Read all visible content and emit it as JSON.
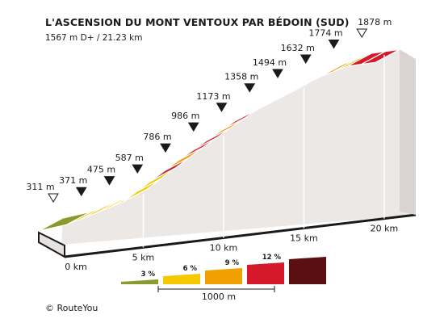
{
  "chart_data": {
    "type": "area",
    "title": "L'ASCENSION DU MONT VENTOUX PAR BÉDOIN (SUD)",
    "subtitle": "1567 m D+ / 21.23 km",
    "total_distance_km": 21.23,
    "x_ticks": [
      {
        "km": 0,
        "label": "0 km"
      },
      {
        "km": 5,
        "label": "5 km"
      },
      {
        "km": 10,
        "label": "10 km"
      },
      {
        "km": 15,
        "label": "15 km"
      },
      {
        "km": 20,
        "label": "20 km"
      }
    ],
    "markers": [
      {
        "km": 0,
        "elev": 311,
        "label": "311 m",
        "type": "open"
      },
      {
        "km": 1,
        "elev": 371,
        "label": "371 m",
        "type": "filled"
      },
      {
        "km": 2,
        "elev": 475,
        "label": "475 m",
        "type": "filled"
      },
      {
        "km": 3,
        "elev": 587,
        "label": "587 m",
        "type": "filled"
      },
      {
        "km": 4,
        "elev": 786,
        "label": "786 m",
        "type": "filled"
      },
      {
        "km": 5,
        "elev": 986,
        "label": "986 m",
        "type": "filled"
      },
      {
        "km": 6,
        "elev": 1173,
        "label": "1173 m",
        "type": "filled"
      },
      {
        "km": 7,
        "elev": 1358,
        "label": "1358 m",
        "type": "filled"
      },
      {
        "km": 8,
        "elev": 1494,
        "label": "1494 m",
        "type": "filled"
      },
      {
        "km": 9,
        "elev": 1632,
        "label": "1632 m",
        "type": "filled"
      },
      {
        "km": 10,
        "elev": 1774,
        "label": "1774 m",
        "type": "filled"
      },
      {
        "km": 11,
        "elev": 1878,
        "label": "1878 m",
        "type": "open"
      }
    ],
    "segments": [
      {
        "from_km": 0.0,
        "to_km": 1.0,
        "grade": 3
      },
      {
        "from_km": 1.0,
        "to_km": 1.5,
        "grade": 6
      },
      {
        "from_km": 1.5,
        "to_km": 2.0,
        "grade": 6
      },
      {
        "from_km": 2.0,
        "to_km": 2.5,
        "grade": 6
      },
      {
        "from_km": 2.5,
        "to_km": 3.0,
        "grade": 6
      },
      {
        "from_km": 3.0,
        "to_km": 3.5,
        "grade": 6
      },
      {
        "from_km": 3.5,
        "to_km": 4.0,
        "grade": 6
      },
      {
        "from_km": 4.0,
        "to_km": 4.5,
        "grade": 12
      },
      {
        "from_km": 4.5,
        "to_km": 5.0,
        "grade": 9
      },
      {
        "from_km": 5.0,
        "to_km": 5.5,
        "grade": 12
      },
      {
        "from_km": 5.5,
        "to_km": 6.0,
        "grade": 12
      },
      {
        "from_km": 6.0,
        "to_km": 6.5,
        "grade": 9
      },
      {
        "from_km": 6.5,
        "to_km": 7.0,
        "grade": 12
      },
      {
        "from_km": 7.0,
        "to_km": 7.5,
        "grade": 12
      },
      {
        "from_km": 7.5,
        "to_km": 8.0,
        "grade": 9
      },
      {
        "from_km": 8.0,
        "to_km": 8.5,
        "grade": 12
      },
      {
        "from_km": 8.5,
        "to_km": 9.0,
        "grade": 12
      },
      {
        "from_km": 9.0,
        "to_km": 9.5,
        "grade": 9
      },
      {
        "from_km": 9.5,
        "to_km": 10.0,
        "grade": 9
      },
      {
        "from_km": 10.0,
        "to_km": 10.5,
        "grade": 9
      },
      {
        "from_km": 10.5,
        "to_km": 11.0,
        "grade": 6
      },
      {
        "from_km": 11.0,
        "to_km": 11.5,
        "grade": 12
      },
      {
        "from_km": 11.5,
        "to_km": 12.0,
        "grade": 12
      }
    ],
    "legend": {
      "placement": "bottom-center",
      "scale_label": "1000 m",
      "items": [
        {
          "label": "3 %",
          "color": "#8a9a2c"
        },
        {
          "label": "6 %",
          "color": "#f5c800"
        },
        {
          "label": "9 %",
          "color": "#f0a000"
        },
        {
          "label": "12 %",
          "color": "#d41a2a"
        },
        {
          "label": "",
          "color": "#5a1010"
        }
      ]
    },
    "colors": {
      "grade_3": "#8a9a2c",
      "grade_6": "#f5c800",
      "grade_9": "#f0a000",
      "grade_12": "#d41a2a",
      "grade_15": "#5a1010",
      "wall": "#ece8e6",
      "ink": "#1a1a1a"
    }
  },
  "credit": "© RouteYou"
}
